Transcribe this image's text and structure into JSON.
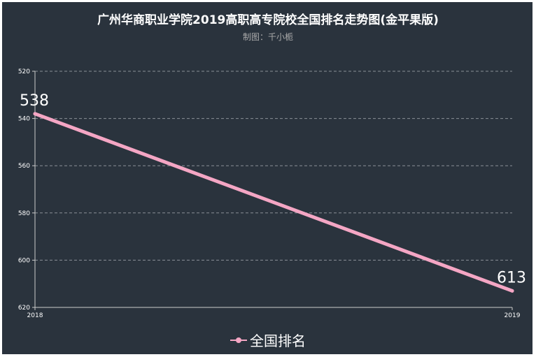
{
  "chart_data": {
    "type": "line",
    "title": "广州华商职业学院2019高职高专院校全国排名走势图(金平果版)",
    "subtitle": "制图：千小栀",
    "x": [
      "2018",
      "2019"
    ],
    "series": [
      {
        "name": "全国排名",
        "values": [
          538,
          613
        ],
        "color": "#f4a6c4"
      }
    ],
    "ylim": [
      520,
      620
    ],
    "y_inverted": true,
    "yticks": [
      520,
      540,
      560,
      580,
      600,
      620
    ],
    "grid": true,
    "legend_position": "bottom"
  },
  "colors": {
    "background": "#2a333d",
    "line": "#f4a6c4",
    "grid": "#8a9097",
    "text": "#ffffff"
  }
}
